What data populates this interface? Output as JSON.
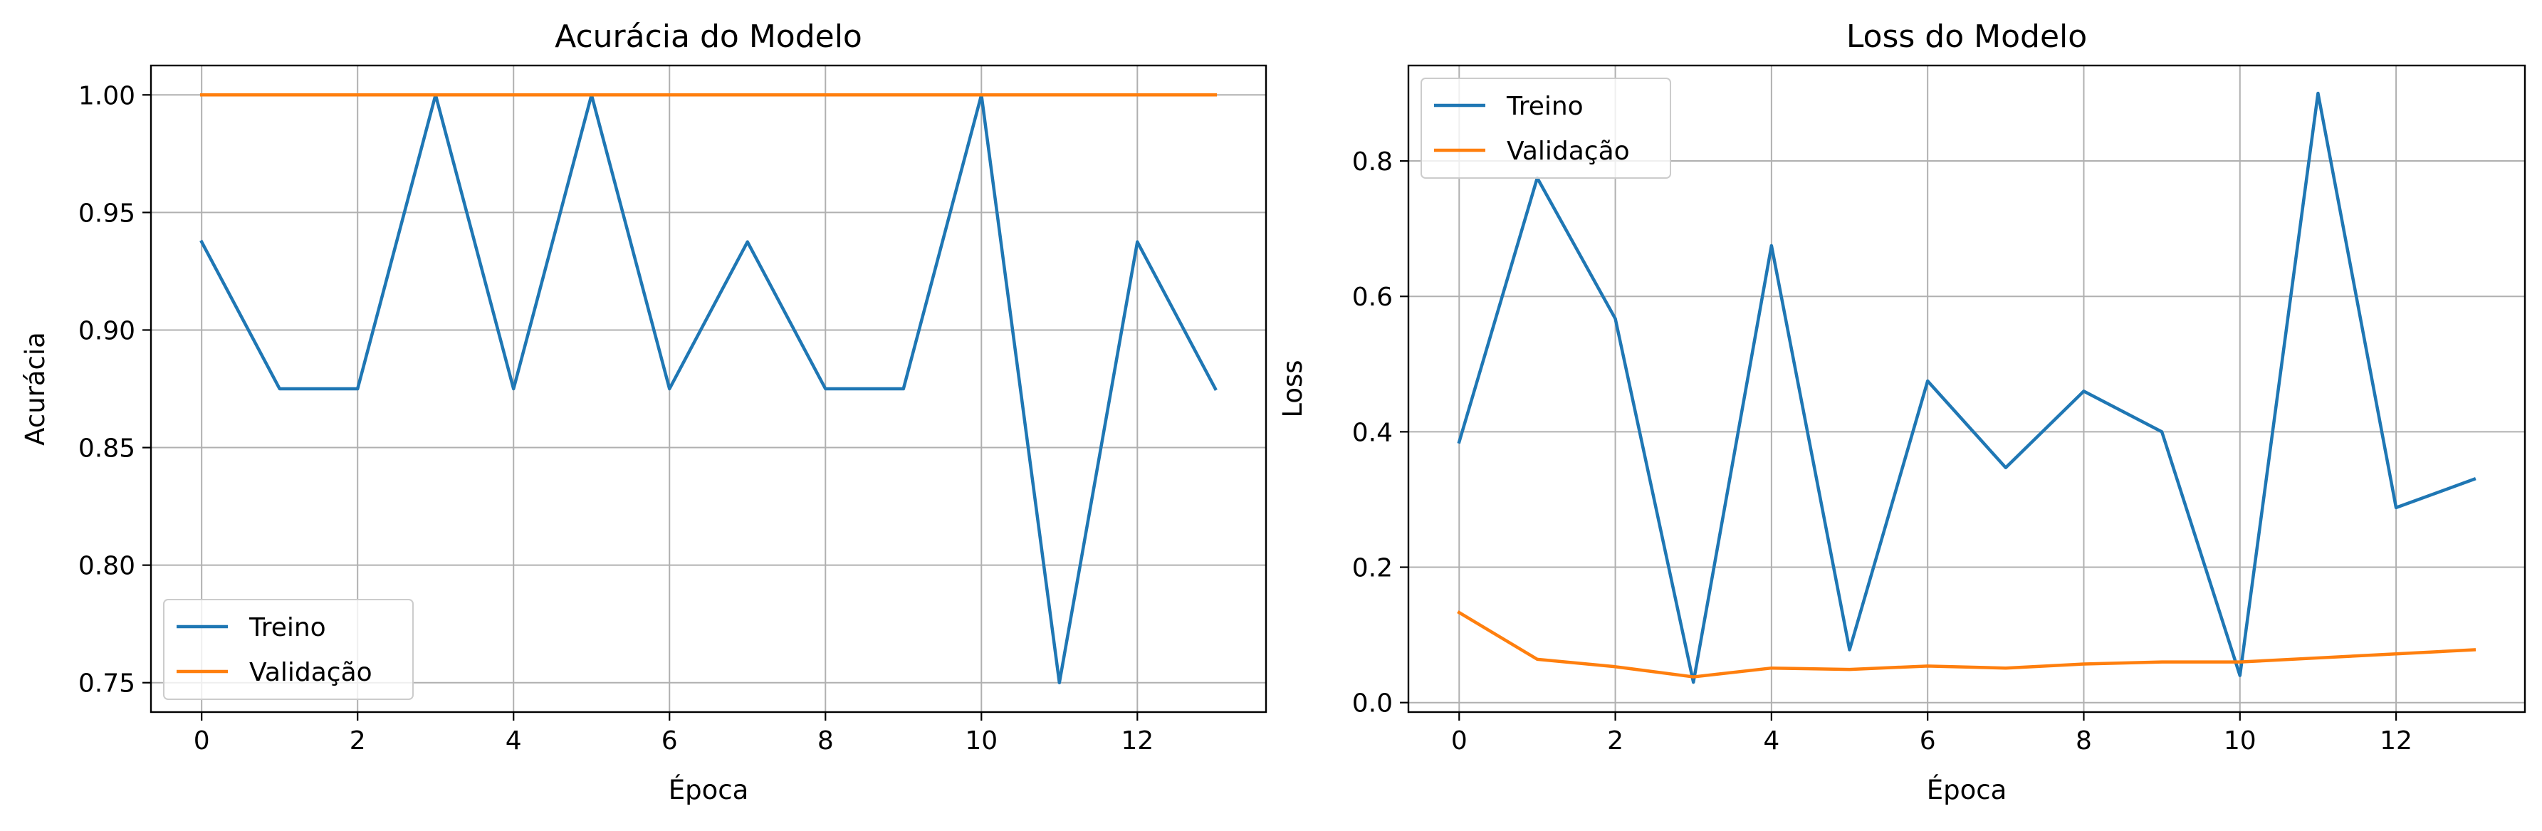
{
  "colors": {
    "train": "#1f77b4",
    "validation": "#ff7f0e",
    "grid": "#b0b0b0"
  },
  "chart_data": [
    {
      "type": "line",
      "title": "Acurácia do Modelo",
      "xlabel": "Época",
      "ylabel": "Acurácia",
      "xlim": [
        -0.65,
        13.65
      ],
      "ylim": [
        0.7375,
        1.0125
      ],
      "xticks": [
        0,
        2,
        4,
        6,
        8,
        10,
        12
      ],
      "xtick_labels": [
        "0",
        "2",
        "4",
        "6",
        "8",
        "10",
        "12"
      ],
      "yticks": [
        0.75,
        0.8,
        0.85,
        0.9,
        0.95,
        1.0
      ],
      "ytick_labels": [
        "0.75",
        "0.80",
        "0.85",
        "0.90",
        "0.95",
        "1.00"
      ],
      "grid": true,
      "legend_position": "lower-left",
      "x": [
        0,
        1,
        2,
        3,
        4,
        5,
        6,
        7,
        8,
        9,
        10,
        11,
        12,
        13
      ],
      "series": [
        {
          "name": "Treino",
          "color": "#1f77b4",
          "values": [
            0.9375,
            0.875,
            0.875,
            1.0,
            0.875,
            1.0,
            0.875,
            0.9375,
            0.875,
            0.875,
            1.0,
            0.75,
            0.9375,
            0.875
          ]
        },
        {
          "name": "Validação",
          "color": "#ff7f0e",
          "values": [
            1.0,
            1.0,
            1.0,
            1.0,
            1.0,
            1.0,
            1.0,
            1.0,
            1.0,
            1.0,
            1.0,
            1.0,
            1.0,
            1.0
          ]
        }
      ]
    },
    {
      "type": "line",
      "title": "Loss do Modelo",
      "xlabel": "Época",
      "ylabel": "Loss",
      "xlim": [
        -0.65,
        13.65
      ],
      "ylim": [
        -0.014,
        0.941
      ],
      "xticks": [
        0,
        2,
        4,
        6,
        8,
        10,
        12
      ],
      "xtick_labels": [
        "0",
        "2",
        "4",
        "6",
        "8",
        "10",
        "12"
      ],
      "yticks": [
        0.0,
        0.2,
        0.4,
        0.6,
        0.8
      ],
      "ytick_labels": [
        "0.0",
        "0.2",
        "0.4",
        "0.6",
        "0.8"
      ],
      "grid": true,
      "legend_position": "top-left",
      "x": [
        0,
        1,
        2,
        3,
        4,
        5,
        6,
        7,
        8,
        9,
        10,
        11,
        12,
        13
      ],
      "series": [
        {
          "name": "Treino",
          "color": "#1f77b4",
          "values": [
            0.385,
            0.775,
            0.567,
            0.03,
            0.675,
            0.078,
            0.475,
            0.347,
            0.46,
            0.4,
            0.04,
            0.9,
            0.288,
            0.33
          ]
        },
        {
          "name": "Validação",
          "color": "#ff7f0e",
          "values": [
            0.133,
            0.064,
            0.053,
            0.038,
            0.051,
            0.049,
            0.054,
            0.051,
            0.057,
            0.06,
            0.06,
            0.066,
            0.072,
            0.078
          ]
        }
      ]
    }
  ]
}
